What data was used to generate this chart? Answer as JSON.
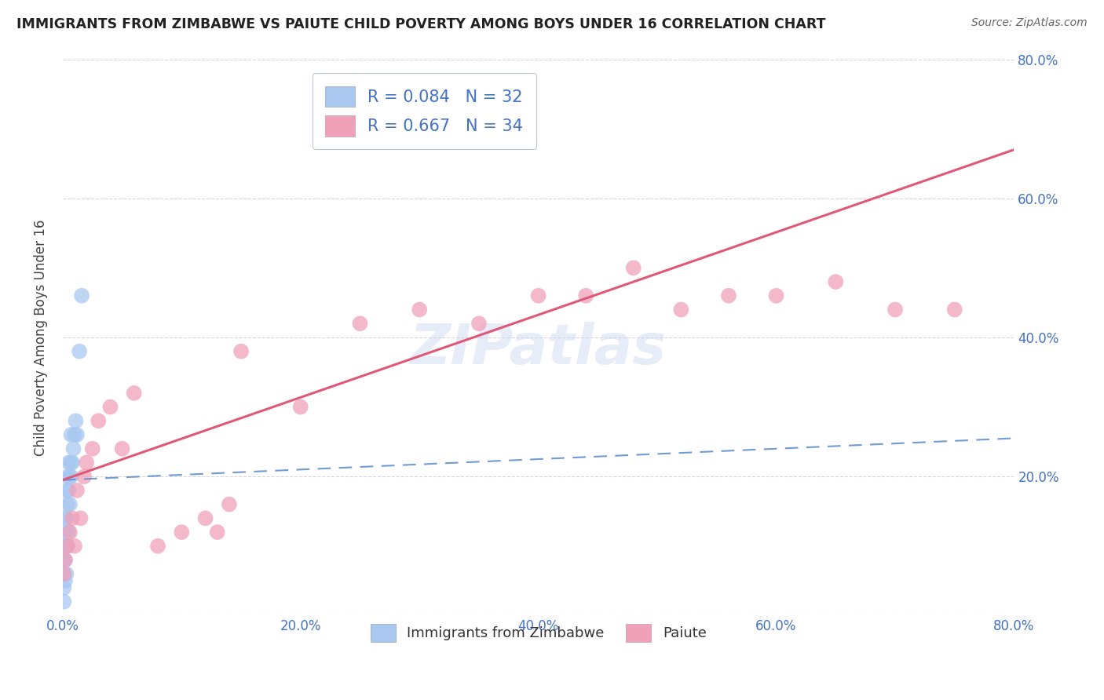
{
  "title": "IMMIGRANTS FROM ZIMBABWE VS PAIUTE CHILD POVERTY AMONG BOYS UNDER 16 CORRELATION CHART",
  "source": "Source: ZipAtlas.com",
  "ylabel": "Child Poverty Among Boys Under 16",
  "xlim": [
    0.0,
    0.8
  ],
  "ylim": [
    0.0,
    0.8
  ],
  "xticks": [
    0.0,
    0.2,
    0.4,
    0.6,
    0.8
  ],
  "yticks": [
    0.0,
    0.2,
    0.4,
    0.6,
    0.8
  ],
  "xticklabels": [
    "0.0%",
    "20.0%",
    "40.0%",
    "60.0%",
    "80.0%"
  ],
  "right_yticklabels": [
    "",
    "20.0%",
    "40.0%",
    "60.0%",
    "80.0%"
  ],
  "blue_R": 0.084,
  "blue_N": 32,
  "pink_R": 0.667,
  "pink_N": 34,
  "blue_color": "#a8c8f0",
  "pink_color": "#f0a0b8",
  "blue_line_color": "#6090d0",
  "pink_line_color": "#e05878",
  "watermark": "ZIPatlas",
  "legend_label_blue": "Immigrants from Zimbabwe",
  "legend_label_pink": "Paiute",
  "blue_x": [
    0.001,
    0.001,
    0.001,
    0.001,
    0.001,
    0.002,
    0.002,
    0.002,
    0.002,
    0.002,
    0.003,
    0.003,
    0.003,
    0.003,
    0.004,
    0.004,
    0.004,
    0.005,
    0.005,
    0.005,
    0.006,
    0.006,
    0.007,
    0.007,
    0.007,
    0.008,
    0.009,
    0.01,
    0.011,
    0.012,
    0.014,
    0.016
  ],
  "blue_y": [
    0.02,
    0.04,
    0.06,
    0.08,
    0.1,
    0.05,
    0.08,
    0.1,
    0.12,
    0.14,
    0.06,
    0.1,
    0.14,
    0.18,
    0.1,
    0.16,
    0.2,
    0.12,
    0.18,
    0.22,
    0.16,
    0.2,
    0.2,
    0.22,
    0.26,
    0.22,
    0.24,
    0.26,
    0.28,
    0.26,
    0.38,
    0.46
  ],
  "pink_x": [
    0.001,
    0.002,
    0.004,
    0.006,
    0.008,
    0.01,
    0.012,
    0.015,
    0.018,
    0.02,
    0.025,
    0.03,
    0.04,
    0.05,
    0.06,
    0.08,
    0.1,
    0.12,
    0.13,
    0.14,
    0.15,
    0.2,
    0.25,
    0.3,
    0.35,
    0.4,
    0.44,
    0.48,
    0.52,
    0.56,
    0.6,
    0.65,
    0.7,
    0.75
  ],
  "pink_y": [
    0.06,
    0.08,
    0.1,
    0.12,
    0.14,
    0.1,
    0.18,
    0.14,
    0.2,
    0.22,
    0.24,
    0.28,
    0.3,
    0.24,
    0.32,
    0.1,
    0.12,
    0.14,
    0.12,
    0.16,
    0.38,
    0.3,
    0.42,
    0.44,
    0.42,
    0.46,
    0.46,
    0.5,
    0.44,
    0.46,
    0.46,
    0.48,
    0.44,
    0.44
  ],
  "blue_line_start_y": 0.195,
  "blue_line_end_y": 0.255,
  "pink_line_start_y": 0.195,
  "pink_line_end_y": 0.67
}
